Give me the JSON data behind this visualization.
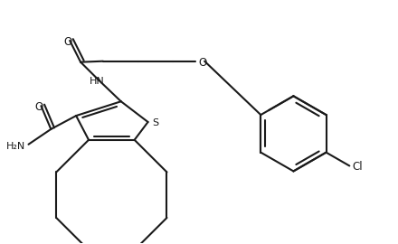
{
  "bg_color": "#ffffff",
  "line_color": "#1a1a1a",
  "line_width": 1.5,
  "figsize": [
    4.4,
    2.7
  ],
  "dpi": 100,
  "xlim": [
    0,
    440
  ],
  "ylim": [
    0,
    270
  ]
}
